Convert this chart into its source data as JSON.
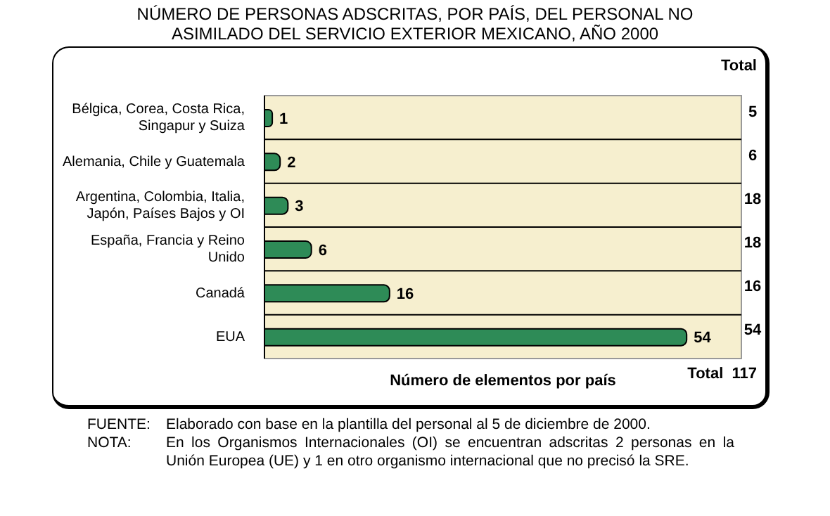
{
  "chart_data": {
    "type": "bar",
    "orientation": "horizontal",
    "title": "NÚMERO DE PERSONAS ADSCRITAS, POR PAÍS, DEL PERSONAL NO ASIMILADO DEL SERVICIO EXTERIOR MEXICANO, AÑO 2000",
    "xlabel": "Número de elementos por país",
    "categories": [
      "Bélgica, Corea, Costa Rica, Singapur y Suiza",
      "Alemania, Chile y Guatemala",
      "Argentina, Colombia, Italia, Japón, Países Bajos y OI",
      "España, Francia y Reino Unido",
      "Canadá",
      "EUA"
    ],
    "values": [
      1,
      2,
      3,
      6,
      16,
      54
    ],
    "color": "#2e8b57",
    "xlim": [
      0,
      61
    ],
    "data_labels": true,
    "grid": "y",
    "annotations": [
      "Total",
      "5",
      "6",
      "18",
      "18",
      "16",
      "54",
      "Total  117",
      "FUENTE: Elaborado con base en la plantilla del personal al 5 de diciembre de 2000.",
      "NOTA: En los Organismos Internacionales (OI) se encuentran adscritas 2 personas en la Unión Europea (UE) y 1 en otro organismo internacional que no precisó la SRE."
    ]
  }
}
